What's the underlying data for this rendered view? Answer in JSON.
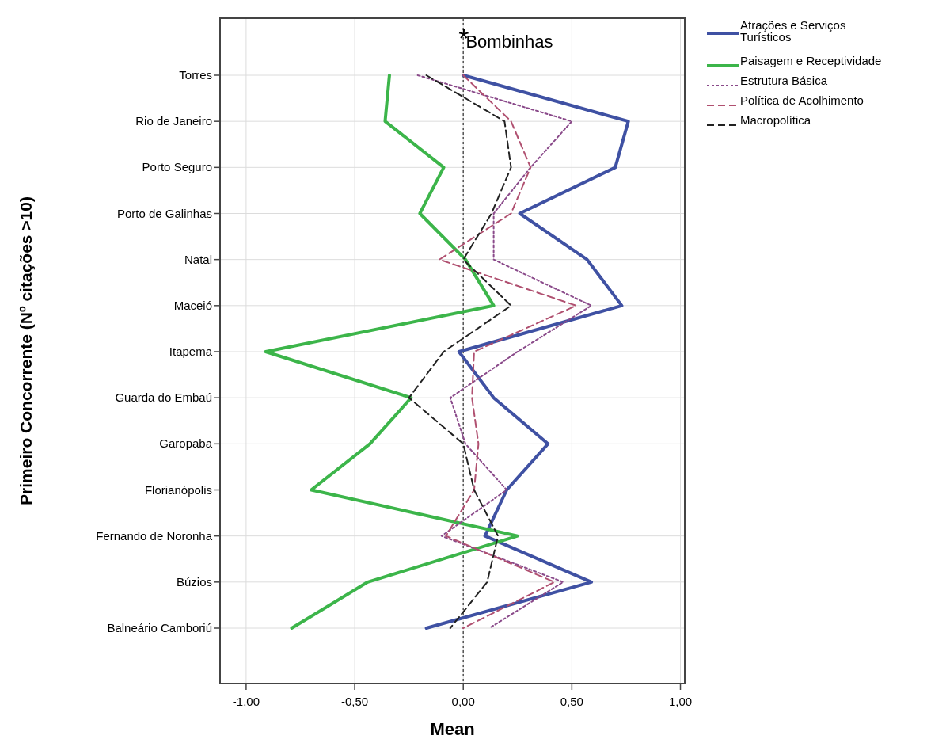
{
  "chart_data": {
    "type": "line",
    "orientation": "horizontal",
    "xlabel": "Mean",
    "ylabel": "Primeiro Concorrente (Nº citações >10)",
    "categories": [
      "Torres",
      "Rio de Janeiro",
      "Porto Seguro",
      "Porto de Galinhas",
      "Natal",
      "Maceió",
      "Itapema",
      "Guarda do Embaú",
      "Garopaba",
      "Florianópolis",
      "Fernando de Noronha",
      "Búzios",
      "Balneário Camboriú"
    ],
    "series": [
      {
        "name": "Atrações e Serviços Turísticos",
        "color": "#3f51a3",
        "line_style": "solid",
        "values": [
          0,
          0.76,
          0.7,
          0.26,
          0.57,
          0.73,
          -0.02,
          0.14,
          0.39,
          0.2,
          0.1,
          0.59,
          -0.17
        ]
      },
      {
        "name": "Paisagem e Receptividade",
        "color": "#3cb54a",
        "line_style": "solid",
        "values": [
          -0.34,
          -0.36,
          -0.09,
          -0.2,
          0.01,
          0.14,
          -0.91,
          -0.24,
          -0.43,
          -0.7,
          0.25,
          -0.44,
          -0.79
        ]
      },
      {
        "name": "Estrutura Básica",
        "color": "#8a4a8a",
        "line_style": "dotted",
        "values": [
          -0.21,
          0.5,
          0.31,
          0.14,
          0.14,
          0.59,
          0.25,
          -0.06,
          0.01,
          0.2,
          -0.1,
          0.46,
          0.12
        ]
      },
      {
        "name": "Política de Acolhimento",
        "color": "#b05070",
        "line_style": "dashed",
        "values": [
          0,
          0.22,
          0.31,
          0.22,
          -0.11,
          0.52,
          0.05,
          0.04,
          0.07,
          0.05,
          -0.08,
          0.42,
          0
        ]
      },
      {
        "name": "Macropolítica",
        "color": "#222222",
        "line_style": "dashed",
        "values": [
          -0.17,
          0.19,
          0.22,
          0.13,
          0,
          0.22,
          -0.09,
          -0.25,
          0,
          0.05,
          0.16,
          0.11,
          -0.06
        ]
      }
    ],
    "xlim": [
      -1.12,
      1.02
    ],
    "xticks": [
      {
        "value": -1,
        "label": "-1,00"
      },
      {
        "value": -0.5,
        "label": "-0,50"
      },
      {
        "value": 0,
        "label": "0,00"
      },
      {
        "value": 0.5,
        "label": "0,50"
      },
      {
        "value": 1,
        "label": "1,00"
      }
    ],
    "grid": true,
    "legend": "top right",
    "ref_lines": [
      {
        "axis": "x",
        "value": 0,
        "label": "*Bombinhas",
        "line_style": "dotted",
        "color": "#555555"
      }
    ]
  }
}
